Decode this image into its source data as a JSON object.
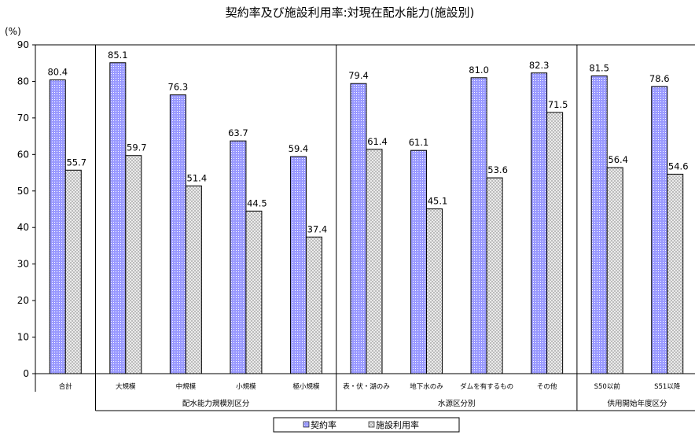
{
  "chart_data": {
    "type": "bar",
    "title": "契約率及び施設利用率:対現在配水能力(施設別)",
    "ylabel": "(%)",
    "ylim": [
      0,
      90
    ],
    "yticks": [
      0,
      10,
      20,
      30,
      40,
      50,
      60,
      70,
      80,
      90
    ],
    "grid": false,
    "legend_position": "bottom-center",
    "categories": [
      "合計",
      "大規模",
      "中規模",
      "小規模",
      "極小規模",
      "表・伏・湖のみ",
      "地下水のみ",
      "ダムを有するもの",
      "その他",
      "S50以前",
      "S51以降"
    ],
    "groups": [
      {
        "label": "配水能力規模別区分",
        "categories": [
          "大規模",
          "中規模",
          "小規模",
          "極小規模"
        ]
      },
      {
        "label": "水源区分別",
        "categories": [
          "表・伏・湖のみ",
          "地下水のみ",
          "ダムを有するもの",
          "その他"
        ]
      },
      {
        "label": "供用開始年度区分",
        "categories": [
          "S50以前",
          "S51以降"
        ]
      }
    ],
    "series": [
      {
        "name": "契約率",
        "color": "#9999ff",
        "pattern": "dotted",
        "values": [
          80.4,
          85.1,
          76.3,
          63.7,
          59.4,
          79.4,
          61.1,
          81.0,
          82.3,
          81.5,
          78.6
        ],
        "labels": [
          "80.4",
          "85.1",
          "76.3",
          "63.7",
          "59.4",
          "79.4",
          "61.1",
          "81.0",
          "82.3",
          "81.5",
          "78.6"
        ]
      },
      {
        "name": "施設利用率",
        "color": "#e0e0e0",
        "pattern": "crosshatch",
        "values": [
          55.7,
          59.7,
          51.4,
          44.5,
          37.4,
          61.4,
          45.1,
          53.6,
          71.5,
          56.4,
          54.6
        ],
        "labels": [
          "55.7",
          "59.7",
          "51.4",
          "44.5",
          "37.4",
          "61.4",
          "45.1",
          "53.6",
          "71.5",
          "56.4",
          "54.6"
        ]
      }
    ]
  }
}
